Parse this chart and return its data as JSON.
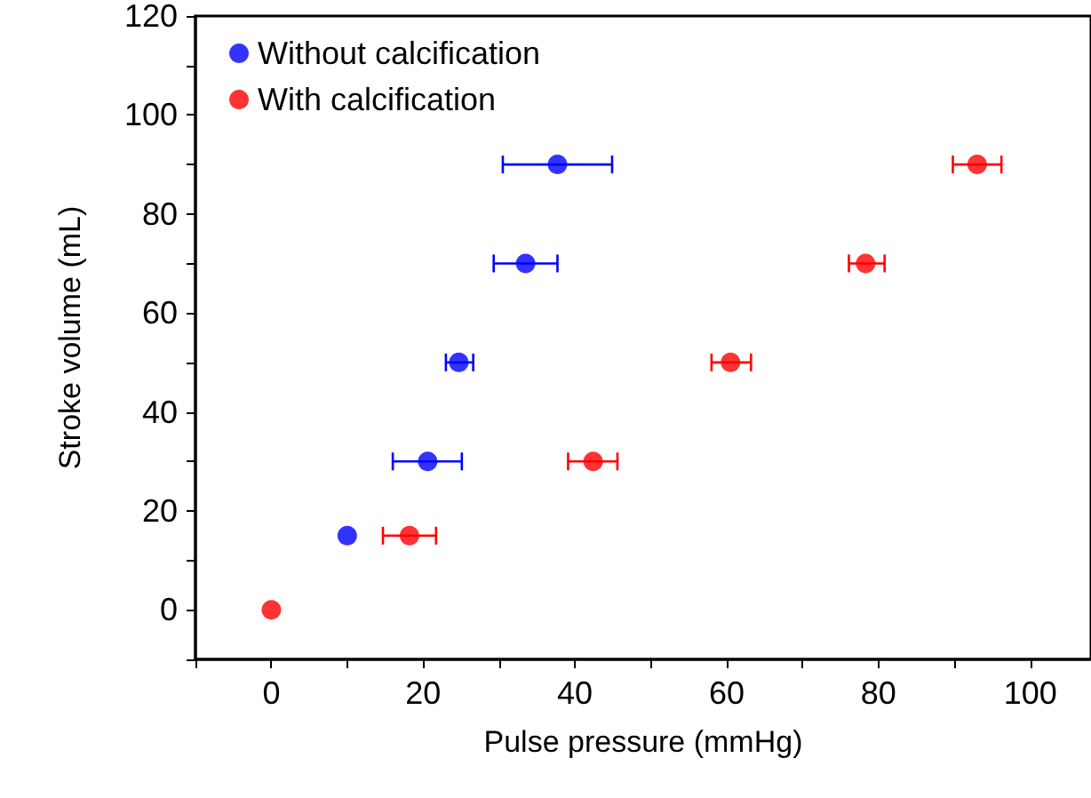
{
  "chart_data": {
    "type": "scatter",
    "xlabel": "Pulse pressure (mmHg)",
    "ylabel": "Stroke volume (mL)",
    "xlim": [
      -10,
      108
    ],
    "ylim": [
      -10,
      120
    ],
    "xticks": [
      {
        "value": -10,
        "label": null
      },
      0,
      {
        "value": 10,
        "label": null
      },
      20,
      {
        "value": 30,
        "label": null
      },
      40,
      {
        "value": 50,
        "label": null
      },
      60,
      {
        "value": 70,
        "label": null
      },
      80,
      {
        "value": 90,
        "label": null
      },
      100
    ],
    "yticks": [
      {
        "value": -10,
        "label": null
      },
      0,
      {
        "value": 10,
        "label": null
      },
      20,
      {
        "value": 30,
        "label": null
      },
      40,
      {
        "value": 50,
        "label": null
      },
      60,
      {
        "value": 70,
        "label": null
      },
      80,
      {
        "value": 90,
        "label": null
      },
      100,
      {
        "value": 110,
        "label": null
      },
      120
    ],
    "grid": false,
    "legend": "top left",
    "marker": "circle",
    "series": [
      {
        "name": "Without calcification",
        "color": "#0000ff",
        "x": [
          10,
          20.6,
          24.7,
          33.5,
          37.7
        ],
        "values": [
          15,
          30,
          50,
          70,
          90
        ],
        "xerrors": [
          null,
          [
            16,
            25.1
          ],
          [
            23,
            26.6
          ],
          [
            29.3,
            37.7
          ],
          [
            30.5,
            44.9
          ]
        ]
      },
      {
        "name": "With calcification",
        "color": "#ff0000",
        "x": [
          0,
          18.2,
          42.4,
          60.5,
          78.3,
          93
        ],
        "values": [
          0,
          15,
          30,
          50,
          70,
          90
        ],
        "xerrors": [
          null,
          [
            14.7,
            21.7
          ],
          [
            39.1,
            45.6
          ],
          [
            58,
            63.2
          ],
          [
            76.1,
            80.8
          ],
          [
            89.8,
            96.2
          ]
        ]
      }
    ]
  }
}
